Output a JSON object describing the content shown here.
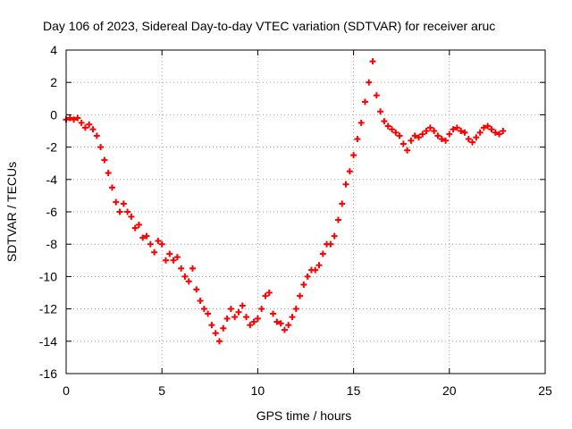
{
  "chart_data": {
    "type": "scatter",
    "title": "Day 106 of 2023, Sidereal Day-to-day VTEC variation (SDTVAR) for receiver aruc",
    "xlabel": "GPS time / hours",
    "ylabel": "SDTVAR / TECUs",
    "xlim": [
      0,
      25
    ],
    "ylim": [
      -16,
      4
    ],
    "xticks": [
      0,
      5,
      10,
      15,
      20,
      25
    ],
    "yticks": [
      -16,
      -14,
      -12,
      -10,
      -8,
      -6,
      -4,
      -2,
      0,
      2,
      4
    ],
    "grid": true,
    "marker": "+",
    "color": "#ff0000",
    "series": [
      {
        "name": "SDTVAR",
        "x": [
          0.0,
          0.2,
          0.4,
          0.6,
          0.8,
          1.0,
          1.2,
          1.4,
          1.6,
          1.8,
          2.0,
          2.2,
          2.4,
          2.6,
          2.8,
          3.0,
          3.2,
          3.4,
          3.6,
          3.8,
          4.0,
          4.2,
          4.4,
          4.6,
          4.8,
          5.0,
          5.2,
          5.4,
          5.6,
          5.8,
          6.0,
          6.2,
          6.4,
          6.6,
          6.8,
          7.0,
          7.2,
          7.4,
          7.6,
          7.8,
          8.0,
          8.2,
          8.4,
          8.6,
          8.8,
          9.0,
          9.2,
          9.4,
          9.6,
          9.8,
          10.0,
          10.2,
          10.4,
          10.6,
          10.8,
          11.0,
          11.2,
          11.4,
          11.6,
          11.8,
          12.0,
          12.2,
          12.4,
          12.6,
          12.8,
          13.0,
          13.2,
          13.4,
          13.6,
          13.8,
          14.0,
          14.2,
          14.4,
          14.6,
          14.8,
          15.0,
          15.2,
          15.4,
          15.6,
          15.8,
          16.0,
          16.2,
          16.4,
          16.6,
          16.8,
          17.0,
          17.2,
          17.4,
          17.6,
          17.8,
          18.0,
          18.2,
          18.4,
          18.6,
          18.8,
          19.0,
          19.2,
          19.4,
          19.6,
          19.8,
          20.0,
          20.2,
          20.4,
          20.6,
          20.8,
          21.0,
          21.2,
          21.4,
          21.6,
          21.8,
          22.0,
          22.2,
          22.4,
          22.6,
          22.8
        ],
        "y": [
          -0.3,
          -0.2,
          -0.3,
          -0.2,
          -0.5,
          -0.8,
          -0.6,
          -0.9,
          -1.3,
          -2.0,
          -2.8,
          -3.6,
          -4.5,
          -5.4,
          -6.0,
          -5.5,
          -6.0,
          -6.3,
          -7.0,
          -6.8,
          -7.6,
          -7.5,
          -8.0,
          -8.5,
          -7.8,
          -8.0,
          -9.0,
          -8.6,
          -9.0,
          -8.8,
          -9.5,
          -10.0,
          -10.3,
          -9.5,
          -10.8,
          -11.5,
          -12.0,
          -12.3,
          -13.0,
          -13.5,
          -14.0,
          -13.2,
          -12.6,
          -12.0,
          -12.5,
          -12.2,
          -11.8,
          -12.5,
          -13.0,
          -12.8,
          -12.6,
          -12.0,
          -11.2,
          -11.0,
          -12.3,
          -12.8,
          -12.9,
          -13.3,
          -13.0,
          -12.5,
          -12.0,
          -11.2,
          -10.5,
          -10.0,
          -9.6,
          -9.6,
          -9.3,
          -8.6,
          -8.0,
          -8.0,
          -7.5,
          -6.5,
          -5.5,
          -4.3,
          -3.5,
          -2.5,
          -1.5,
          -0.5,
          0.8,
          2.0,
          3.3,
          1.2,
          0.2,
          -0.4,
          -0.7,
          -0.9,
          -1.1,
          -1.3,
          -1.8,
          -2.2,
          -1.6,
          -1.3,
          -1.4,
          -1.2,
          -1.0,
          -0.8,
          -1.0,
          -1.3,
          -1.5,
          -1.6,
          -1.2,
          -0.9,
          -0.8,
          -1.0,
          -1.1,
          -1.5,
          -1.7,
          -1.4,
          -1.1,
          -0.8,
          -0.7,
          -0.9,
          -1.1,
          -1.2,
          -1.0
        ]
      }
    ]
  }
}
